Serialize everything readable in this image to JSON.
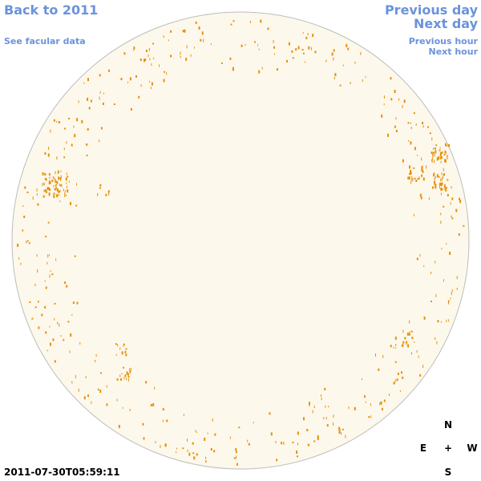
{
  "links": {
    "back": "Back to 2011",
    "facular": "See facular data",
    "previous_day": "Previous day",
    "next_day": "Next day",
    "previous_hour": "Previous hour",
    "next_hour": "Next hour"
  },
  "timestamp": "2011-07-30T05:59:11",
  "compass": {
    "north": "N",
    "east": "E",
    "center": "+",
    "west": "W",
    "south": "S"
  }
}
